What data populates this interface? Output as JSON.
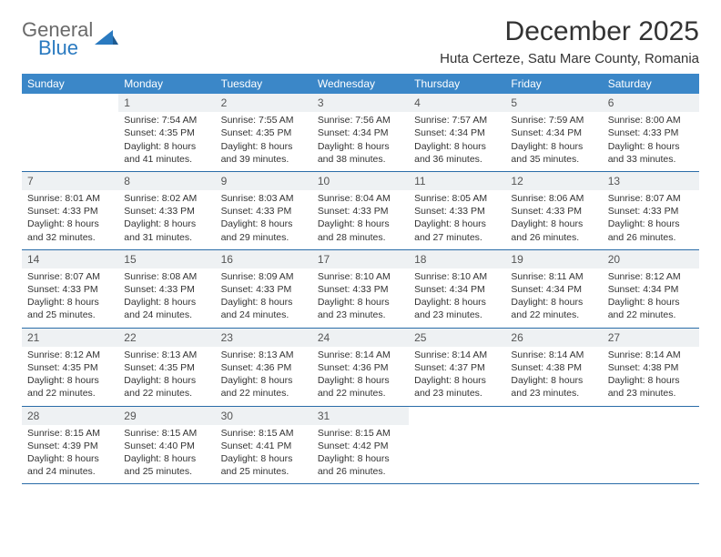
{
  "logo": {
    "text_gray": "General",
    "text_blue": "Blue"
  },
  "title": "December 2025",
  "location": "Huta Certeze, Satu Mare County, Romania",
  "colors": {
    "header_bg": "#3b87c8",
    "header_text": "#ffffff",
    "row_border": "#2a6ca8",
    "daynum_bg": "#eef1f3",
    "body_text": "#333333",
    "logo_gray": "#6a6a6a",
    "logo_blue": "#2a7ac0"
  },
  "day_names": [
    "Sunday",
    "Monday",
    "Tuesday",
    "Wednesday",
    "Thursday",
    "Friday",
    "Saturday"
  ],
  "weeks": [
    [
      {
        "n": "",
        "sr": "",
        "ss": "",
        "dl": ""
      },
      {
        "n": "1",
        "sr": "Sunrise: 7:54 AM",
        "ss": "Sunset: 4:35 PM",
        "dl": "Daylight: 8 hours and 41 minutes."
      },
      {
        "n": "2",
        "sr": "Sunrise: 7:55 AM",
        "ss": "Sunset: 4:35 PM",
        "dl": "Daylight: 8 hours and 39 minutes."
      },
      {
        "n": "3",
        "sr": "Sunrise: 7:56 AM",
        "ss": "Sunset: 4:34 PM",
        "dl": "Daylight: 8 hours and 38 minutes."
      },
      {
        "n": "4",
        "sr": "Sunrise: 7:57 AM",
        "ss": "Sunset: 4:34 PM",
        "dl": "Daylight: 8 hours and 36 minutes."
      },
      {
        "n": "5",
        "sr": "Sunrise: 7:59 AM",
        "ss": "Sunset: 4:34 PM",
        "dl": "Daylight: 8 hours and 35 minutes."
      },
      {
        "n": "6",
        "sr": "Sunrise: 8:00 AM",
        "ss": "Sunset: 4:33 PM",
        "dl": "Daylight: 8 hours and 33 minutes."
      }
    ],
    [
      {
        "n": "7",
        "sr": "Sunrise: 8:01 AM",
        "ss": "Sunset: 4:33 PM",
        "dl": "Daylight: 8 hours and 32 minutes."
      },
      {
        "n": "8",
        "sr": "Sunrise: 8:02 AM",
        "ss": "Sunset: 4:33 PM",
        "dl": "Daylight: 8 hours and 31 minutes."
      },
      {
        "n": "9",
        "sr": "Sunrise: 8:03 AM",
        "ss": "Sunset: 4:33 PM",
        "dl": "Daylight: 8 hours and 29 minutes."
      },
      {
        "n": "10",
        "sr": "Sunrise: 8:04 AM",
        "ss": "Sunset: 4:33 PM",
        "dl": "Daylight: 8 hours and 28 minutes."
      },
      {
        "n": "11",
        "sr": "Sunrise: 8:05 AM",
        "ss": "Sunset: 4:33 PM",
        "dl": "Daylight: 8 hours and 27 minutes."
      },
      {
        "n": "12",
        "sr": "Sunrise: 8:06 AM",
        "ss": "Sunset: 4:33 PM",
        "dl": "Daylight: 8 hours and 26 minutes."
      },
      {
        "n": "13",
        "sr": "Sunrise: 8:07 AM",
        "ss": "Sunset: 4:33 PM",
        "dl": "Daylight: 8 hours and 26 minutes."
      }
    ],
    [
      {
        "n": "14",
        "sr": "Sunrise: 8:07 AM",
        "ss": "Sunset: 4:33 PM",
        "dl": "Daylight: 8 hours and 25 minutes."
      },
      {
        "n": "15",
        "sr": "Sunrise: 8:08 AM",
        "ss": "Sunset: 4:33 PM",
        "dl": "Daylight: 8 hours and 24 minutes."
      },
      {
        "n": "16",
        "sr": "Sunrise: 8:09 AM",
        "ss": "Sunset: 4:33 PM",
        "dl": "Daylight: 8 hours and 24 minutes."
      },
      {
        "n": "17",
        "sr": "Sunrise: 8:10 AM",
        "ss": "Sunset: 4:33 PM",
        "dl": "Daylight: 8 hours and 23 minutes."
      },
      {
        "n": "18",
        "sr": "Sunrise: 8:10 AM",
        "ss": "Sunset: 4:34 PM",
        "dl": "Daylight: 8 hours and 23 minutes."
      },
      {
        "n": "19",
        "sr": "Sunrise: 8:11 AM",
        "ss": "Sunset: 4:34 PM",
        "dl": "Daylight: 8 hours and 22 minutes."
      },
      {
        "n": "20",
        "sr": "Sunrise: 8:12 AM",
        "ss": "Sunset: 4:34 PM",
        "dl": "Daylight: 8 hours and 22 minutes."
      }
    ],
    [
      {
        "n": "21",
        "sr": "Sunrise: 8:12 AM",
        "ss": "Sunset: 4:35 PM",
        "dl": "Daylight: 8 hours and 22 minutes."
      },
      {
        "n": "22",
        "sr": "Sunrise: 8:13 AM",
        "ss": "Sunset: 4:35 PM",
        "dl": "Daylight: 8 hours and 22 minutes."
      },
      {
        "n": "23",
        "sr": "Sunrise: 8:13 AM",
        "ss": "Sunset: 4:36 PM",
        "dl": "Daylight: 8 hours and 22 minutes."
      },
      {
        "n": "24",
        "sr": "Sunrise: 8:14 AM",
        "ss": "Sunset: 4:36 PM",
        "dl": "Daylight: 8 hours and 22 minutes."
      },
      {
        "n": "25",
        "sr": "Sunrise: 8:14 AM",
        "ss": "Sunset: 4:37 PM",
        "dl": "Daylight: 8 hours and 23 minutes."
      },
      {
        "n": "26",
        "sr": "Sunrise: 8:14 AM",
        "ss": "Sunset: 4:38 PM",
        "dl": "Daylight: 8 hours and 23 minutes."
      },
      {
        "n": "27",
        "sr": "Sunrise: 8:14 AM",
        "ss": "Sunset: 4:38 PM",
        "dl": "Daylight: 8 hours and 23 minutes."
      }
    ],
    [
      {
        "n": "28",
        "sr": "Sunrise: 8:15 AM",
        "ss": "Sunset: 4:39 PM",
        "dl": "Daylight: 8 hours and 24 minutes."
      },
      {
        "n": "29",
        "sr": "Sunrise: 8:15 AM",
        "ss": "Sunset: 4:40 PM",
        "dl": "Daylight: 8 hours and 25 minutes."
      },
      {
        "n": "30",
        "sr": "Sunrise: 8:15 AM",
        "ss": "Sunset: 4:41 PM",
        "dl": "Daylight: 8 hours and 25 minutes."
      },
      {
        "n": "31",
        "sr": "Sunrise: 8:15 AM",
        "ss": "Sunset: 4:42 PM",
        "dl": "Daylight: 8 hours and 26 minutes."
      },
      {
        "n": "",
        "sr": "",
        "ss": "",
        "dl": ""
      },
      {
        "n": "",
        "sr": "",
        "ss": "",
        "dl": ""
      },
      {
        "n": "",
        "sr": "",
        "ss": "",
        "dl": ""
      }
    ]
  ]
}
